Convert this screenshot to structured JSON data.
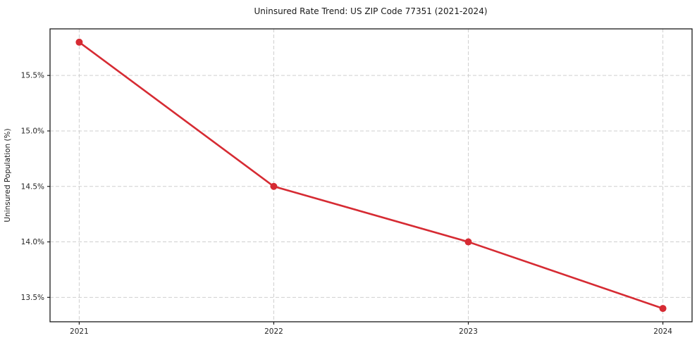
{
  "chart_data": {
    "type": "line",
    "title": "Uninsured Rate Trend: US ZIP Code 77351 (2021-2024)",
    "xlabel": "",
    "ylabel": "Uninsured Population (%)",
    "x": [
      "2021",
      "2022",
      "2023",
      "2024"
    ],
    "series": [
      {
        "name": "Uninsured Population (%)",
        "values": [
          15.8,
          14.5,
          14.0,
          13.4
        ]
      }
    ],
    "ytick_values": [
      13.5,
      14.0,
      14.5,
      15.0,
      15.5
    ],
    "ytick_labels": [
      "13.5%",
      "14.0%",
      "14.5%",
      "15.0%",
      "15.5%"
    ],
    "ylim": [
      13.28,
      15.92
    ],
    "grid": true,
    "grid_style": "dashed",
    "legend_position": "none",
    "line_color": "#d62b33",
    "marker": "circle",
    "grid_color": "#cfcfcf",
    "spine_color": "#1a1a1a",
    "background_color": "#ffffff"
  }
}
